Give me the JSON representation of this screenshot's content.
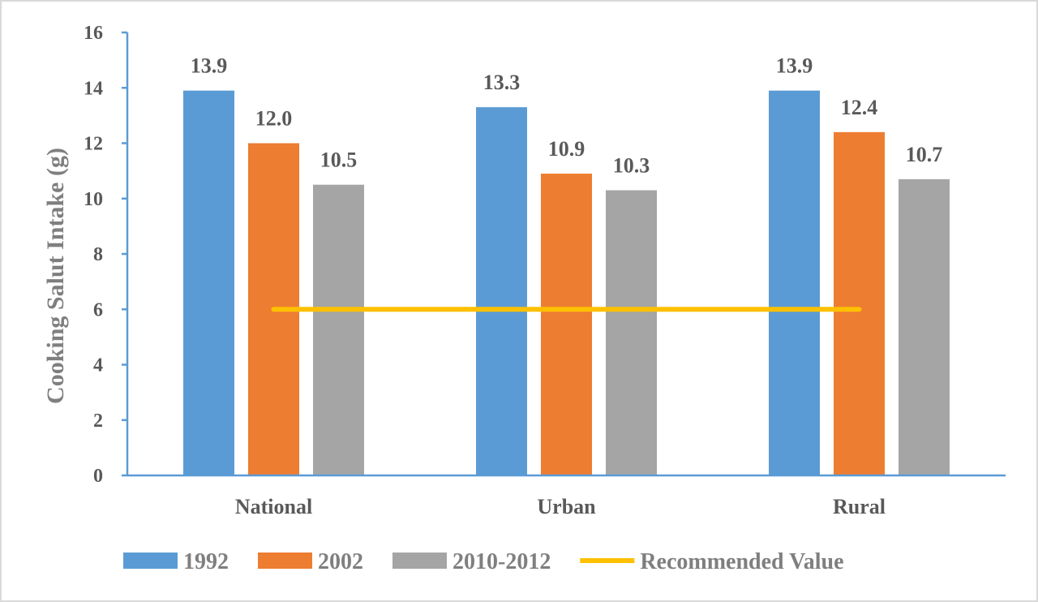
{
  "chart_data": {
    "type": "bar",
    "ylabel": "Cooking Salut Intake (g)",
    "xlabel": "",
    "ylim": [
      0,
      16
    ],
    "yticks": [
      0,
      2,
      4,
      6,
      8,
      10,
      12,
      14,
      16
    ],
    "categories": [
      "National",
      "Urban",
      "Rural"
    ],
    "series": [
      {
        "name": "1992",
        "values": [
          13.9,
          13.3,
          13.9
        ],
        "labels": [
          "13.9",
          "13.3",
          "13.9"
        ],
        "color": "#5b9bd5"
      },
      {
        "name": "2002",
        "values": [
          12.0,
          10.9,
          12.4
        ],
        "labels": [
          "12.0",
          "10.9",
          "12.4"
        ],
        "color": "#ed7d31"
      },
      {
        "name": "2010-2012",
        "values": [
          10.5,
          10.3,
          10.7
        ],
        "labels": [
          "10.5",
          "10.3",
          "10.7"
        ],
        "color": "#a5a5a5"
      }
    ],
    "reference_line": {
      "name": "Recommended Value",
      "value": 6,
      "color": "#ffc000"
    },
    "axis_color": "#5b9bd5",
    "grid": false,
    "legend_position": "bottom"
  }
}
